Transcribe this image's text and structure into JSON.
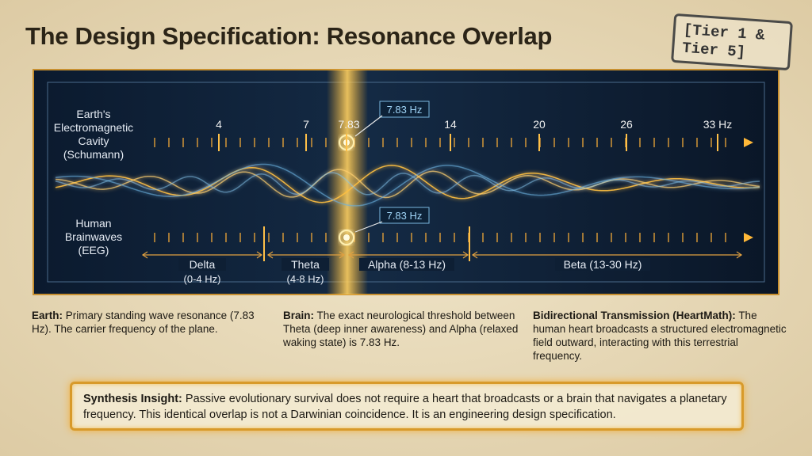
{
  "title": "The Design Specification: Resonance Overlap",
  "badge": {
    "lines": [
      "[Tier 1 &",
      "Tier 5]"
    ]
  },
  "earth_axis": {
    "label_lines": [
      "Earth's",
      "Electromagnetic",
      "Cavity",
      "(Schumann)"
    ],
    "ticks": [
      "4",
      "7",
      "7.83",
      "14",
      "20",
      "26",
      "33 Hz"
    ],
    "callout": "7.83 Hz"
  },
  "brain_axis": {
    "label_lines": [
      "Human",
      "Brainwaves",
      "(EEG)"
    ],
    "callout": "7.83 Hz",
    "bands": [
      {
        "name": "Delta",
        "range": "(0-4 Hz)"
      },
      {
        "name": "Theta",
        "range": "(4-8 Hz)"
      },
      {
        "name": "Alpha (8-13 Hz)"
      },
      {
        "name": "Beta (13-30 Hz)"
      }
    ]
  },
  "notes": [
    {
      "heading": "Earth:",
      "text": "Primary standing wave resonance (7.83 Hz). The carrier frequency of the plane."
    },
    {
      "heading": "Brain:",
      "text": "The exact neurological threshold between Theta (deep inner awareness) and Alpha (relaxed waking state) is 7.83 Hz."
    },
    {
      "heading": "Bidirectional Transmission (HeartMath):",
      "text": "The human heart broadcasts a structured electromagnetic field outward, interacting with this terrestrial frequency."
    }
  ],
  "insight": {
    "heading": "Synthesis Insight:",
    "text": "Passive evolutionary survival does not require a heart that broadcasts or a brain that navigates a planetary frequency. This identical overlap is not a Darwinian coincidence. It is an engineering design specification."
  }
}
